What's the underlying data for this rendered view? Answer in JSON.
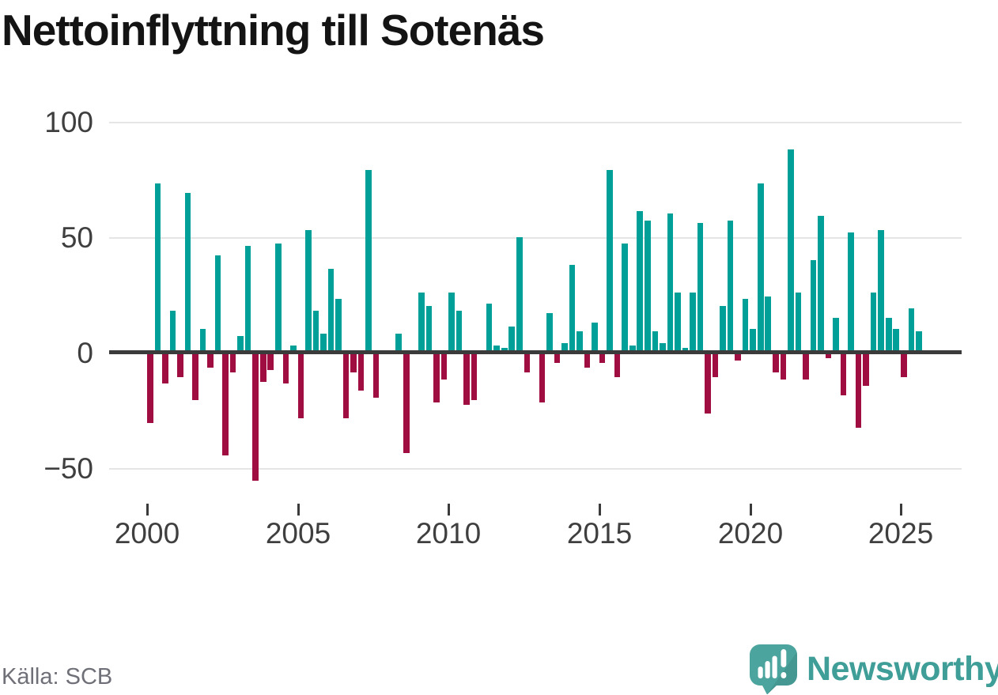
{
  "title": "Nettoinflyttning till Sotenäs",
  "source": "Källa: SCB",
  "brand": {
    "name": "Newsworthy",
    "icon": "newsworthy-speech-bubble-bar-chart-icon"
  },
  "colors": {
    "positive_bar": "#00a099",
    "negative_bar": "#a00d40",
    "zero_axis": "#3b3b3b",
    "gridline": "#e5e5e5",
    "axis_label": "#3f3f3f",
    "title_text": "#141414",
    "source_text": "#6f6f78",
    "brand_teal": "#3f9e97",
    "background": "#ffffff"
  },
  "y_axis": {
    "ticks": [
      100,
      50,
      0,
      -50
    ],
    "labels": [
      "100",
      "50",
      "0",
      "−50"
    ]
  },
  "x_axis": {
    "labels": [
      "2000",
      "2005",
      "2010",
      "2015",
      "2020",
      "2025"
    ]
  },
  "chart_data": {
    "type": "bar",
    "title": "Nettoinflyttning till Sotenäs",
    "x_start": "2000 Q1",
    "x_end": "2025 Q3",
    "x_frequency": "quarterly",
    "ylim": [
      -75,
      110
    ],
    "grid": "horizontal",
    "legend": "none",
    "periods": [
      "2000 Q1",
      "2000 Q2",
      "2000 Q3",
      "2000 Q4",
      "2001 Q1",
      "2001 Q2",
      "2001 Q3",
      "2001 Q4",
      "2002 Q1",
      "2002 Q2",
      "2002 Q3",
      "2002 Q4",
      "2003 Q1",
      "2003 Q2",
      "2003 Q3",
      "2003 Q4",
      "2004 Q1",
      "2004 Q2",
      "2004 Q3",
      "2004 Q4",
      "2005 Q1",
      "2005 Q2",
      "2005 Q3",
      "2005 Q4",
      "2006 Q1",
      "2006 Q2",
      "2006 Q3",
      "2006 Q4",
      "2007 Q1",
      "2007 Q2",
      "2007 Q3",
      "2007 Q4",
      "2008 Q1",
      "2008 Q2",
      "2008 Q3",
      "2008 Q4",
      "2009 Q1",
      "2009 Q2",
      "2009 Q3",
      "2009 Q4",
      "2010 Q1",
      "2010 Q2",
      "2010 Q3",
      "2010 Q4",
      "2011 Q1",
      "2011 Q2",
      "2011 Q3",
      "2011 Q4",
      "2012 Q1",
      "2012 Q2",
      "2012 Q3",
      "2012 Q4",
      "2013 Q1",
      "2013 Q2",
      "2013 Q3",
      "2013 Q4",
      "2014 Q1",
      "2014 Q2",
      "2014 Q3",
      "2014 Q4",
      "2015 Q1",
      "2015 Q2",
      "2015 Q3",
      "2015 Q4",
      "2016 Q1",
      "2016 Q2",
      "2016 Q3",
      "2016 Q4",
      "2017 Q1",
      "2017 Q2",
      "2017 Q3",
      "2017 Q4",
      "2018 Q1",
      "2018 Q2",
      "2018 Q3",
      "2018 Q4",
      "2019 Q1",
      "2019 Q2",
      "2019 Q3",
      "2019 Q4",
      "2020 Q1",
      "2020 Q2",
      "2020 Q3",
      "2020 Q4",
      "2021 Q1",
      "2021 Q2",
      "2021 Q3",
      "2021 Q4",
      "2022 Q1",
      "2022 Q2",
      "2022 Q3",
      "2022 Q4",
      "2023 Q1",
      "2023 Q2",
      "2023 Q3",
      "2023 Q4",
      "2024 Q1",
      "2024 Q2",
      "2024 Q3",
      "2024 Q4",
      "2025 Q1",
      "2025 Q2",
      "2025 Q3"
    ],
    "values": [
      -30,
      73,
      -13,
      18,
      -10,
      69,
      -20,
      10,
      -6,
      42,
      -44,
      -8,
      7,
      46,
      -55,
      -12,
      -7,
      47,
      -13,
      3,
      -28,
      53,
      18,
      8,
      36,
      23,
      -28,
      -8,
      -16,
      79,
      -19,
      0,
      0,
      8,
      -43,
      0,
      26,
      20,
      -21,
      -11,
      26,
      18,
      -22,
      -20,
      0,
      21,
      3,
      2,
      11,
      50,
      -8,
      0,
      -21,
      17,
      -4,
      4,
      38,
      9,
      -6,
      13,
      -4,
      79,
      -10,
      47,
      3,
      61,
      57,
      9,
      4,
      60,
      26,
      2,
      26,
      56,
      -26,
      -10,
      20,
      57,
      -3,
      23,
      10,
      73,
      24,
      -8,
      -11,
      88,
      26,
      -11,
      40,
      59,
      -2,
      15,
      -18,
      52,
      -32,
      -14,
      26,
      53,
      15,
      10,
      -10,
      19,
      9
    ]
  }
}
